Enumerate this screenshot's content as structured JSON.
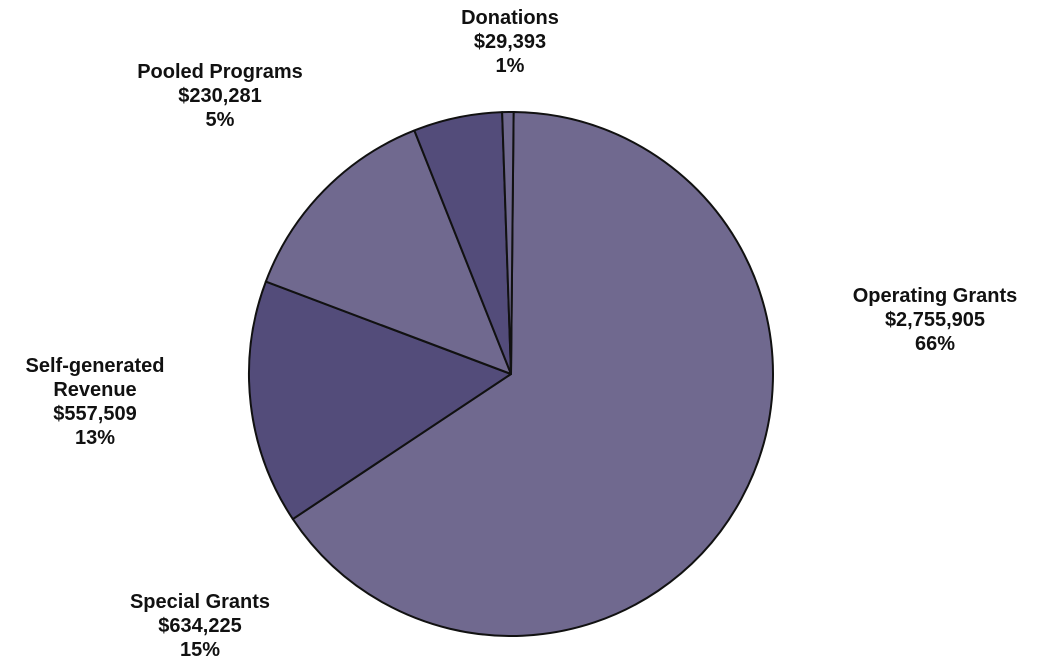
{
  "chart_data": {
    "type": "pie",
    "title": "",
    "slices": [
      {
        "name": "Operating Grants",
        "value": 2755905,
        "value_label": "$2,755,905",
        "percent_label": "66%",
        "color": "#70698f"
      },
      {
        "name": "Special Grants",
        "value": 634225,
        "value_label": "$634,225",
        "percent_label": "15%",
        "color": "#534c7a"
      },
      {
        "name": "Self-generated Revenue",
        "name_lines": [
          "Self-generated",
          "Revenue"
        ],
        "value": 557509,
        "value_label": "$557,509",
        "percent_label": "13%",
        "color": "#70698f"
      },
      {
        "name": "Pooled Programs",
        "value": 230281,
        "value_label": "$230,281",
        "percent_label": "5%",
        "color": "#534c7a"
      },
      {
        "name": "Donations",
        "value": 29393,
        "value_label": "$29,393",
        "percent_label": "1%",
        "color": "#70698f"
      }
    ]
  }
}
